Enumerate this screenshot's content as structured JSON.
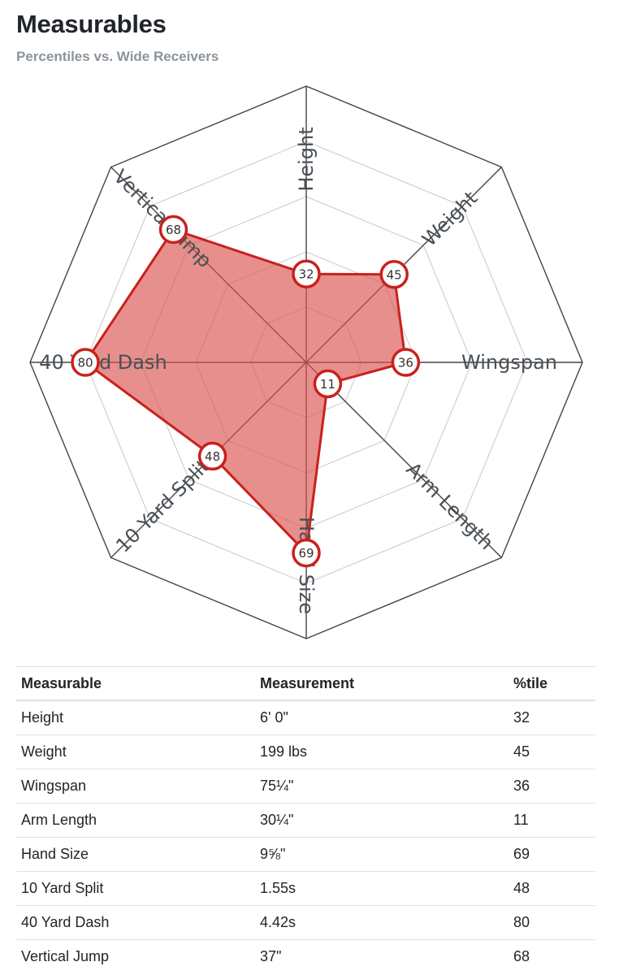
{
  "header": {
    "title": "Measurables",
    "subtitle": "Percentiles vs. Wide Receivers"
  },
  "chart_data": {
    "type": "radar",
    "axes": [
      "Height",
      "Weight",
      "Wingspan",
      "Arm Length",
      "Hand Size",
      "10 Yard Split",
      "40 Yard Dash",
      "Vertical Jump"
    ],
    "values": [
      32,
      45,
      36,
      11,
      69,
      48,
      80,
      68
    ],
    "range": [
      0,
      100
    ],
    "grid_levels": [
      20,
      40,
      60,
      80
    ],
    "colors": {
      "fill": "#d9534f",
      "stroke": "#c9211e",
      "grid": "#d0d0d0",
      "outer": "#444444"
    }
  },
  "table": {
    "headers": [
      "Measurable",
      "Measurement",
      "%tile"
    ],
    "rows": [
      [
        "Height",
        "6' 0\"",
        "32"
      ],
      [
        "Weight",
        "199 lbs",
        "45"
      ],
      [
        "Wingspan",
        "75¼\"",
        "36"
      ],
      [
        "Arm Length",
        "30¼\"",
        "11"
      ],
      [
        "Hand Size",
        "9⅝\"",
        "69"
      ],
      [
        "10 Yard Split",
        "1.55s",
        "48"
      ],
      [
        "40 Yard Dash",
        "4.42s",
        "80"
      ],
      [
        "Vertical Jump",
        "37\"",
        "68"
      ]
    ]
  }
}
